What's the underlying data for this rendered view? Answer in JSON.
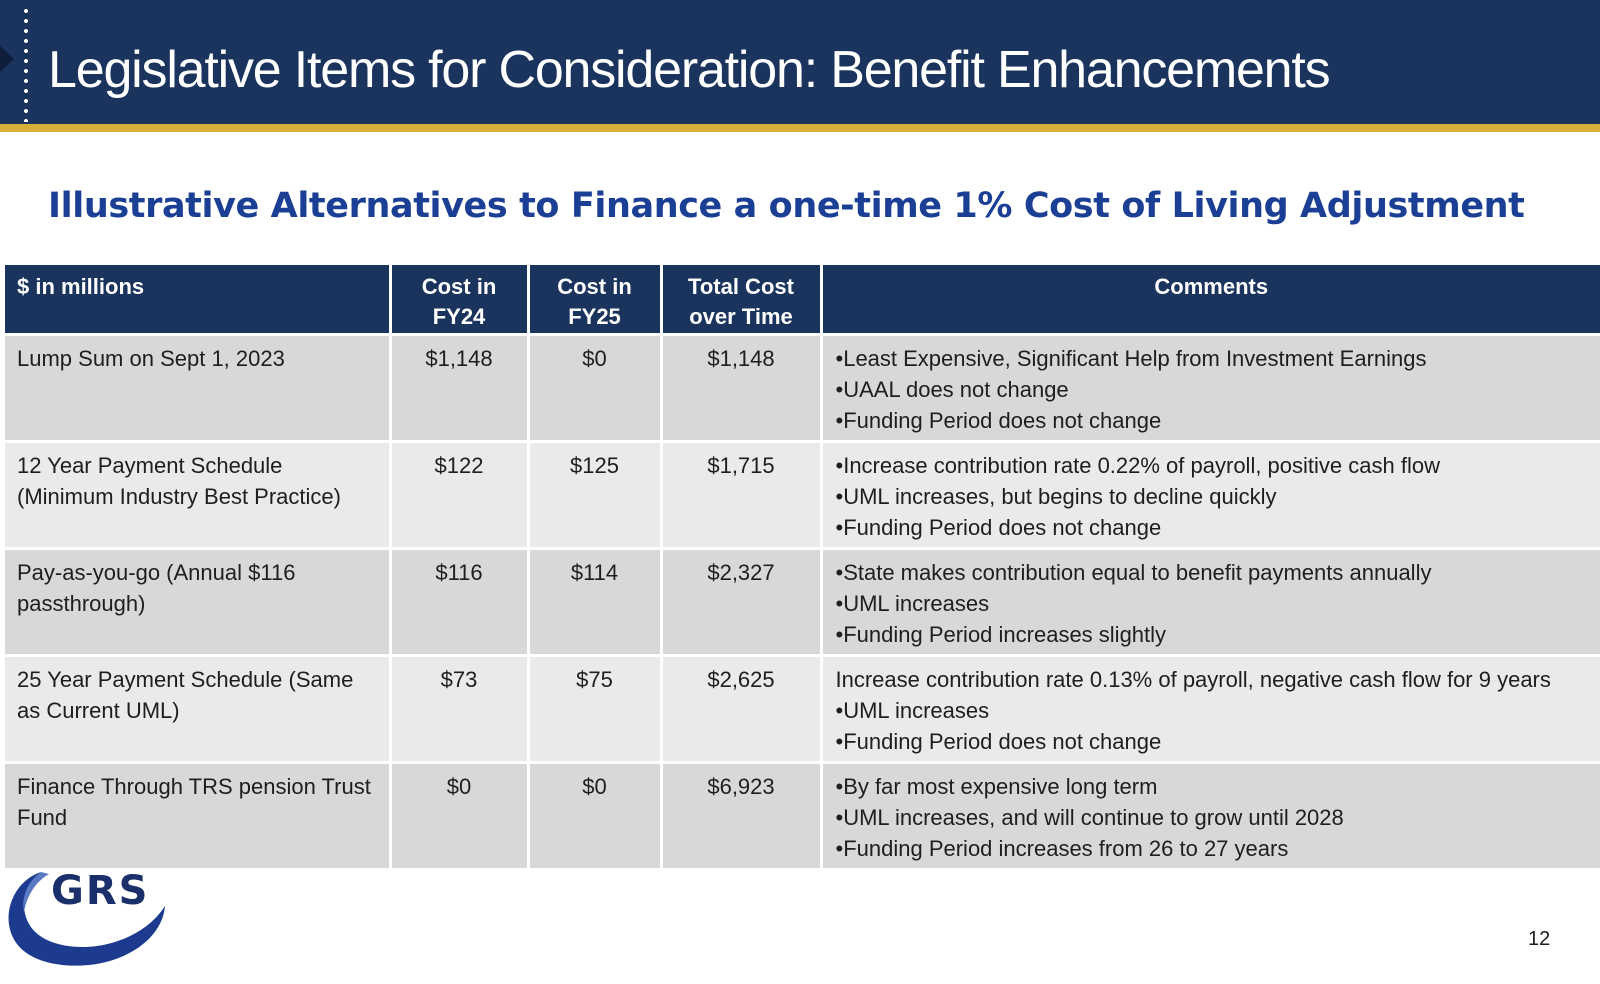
{
  "header": {
    "title": "Legislative Items for Consideration: Benefit Enhancements"
  },
  "subtitle": "Illustrative Alternatives to Finance a one-time 1% Cost of Living Adjustment",
  "table": {
    "columns": [
      {
        "line1": "$ in millions",
        "line2": ""
      },
      {
        "line1": "Cost in",
        "line2": "FY24"
      },
      {
        "line1": "Cost in",
        "line2": "FY25"
      },
      {
        "line1": "Total Cost",
        "line2": "over Time"
      },
      {
        "line1": "Comments",
        "line2": ""
      }
    ],
    "rows": [
      {
        "alternative": "Lump Sum on Sept 1, 2023",
        "fy24": "$1,148",
        "fy25": "$0",
        "total": "$1,148",
        "comments": [
          "•Least Expensive, Significant Help from Investment Earnings",
          "•UAAL does not change",
          "•Funding Period does not change"
        ]
      },
      {
        "alternative": "12 Year Payment Schedule (Minimum Industry Best Practice)",
        "fy24": "$122",
        "fy25": "$125",
        "total": "$1,715",
        "comments": [
          "•Increase contribution rate 0.22% of payroll, positive cash flow",
          "•UML increases, but begins to decline quickly",
          "•Funding Period does not change"
        ]
      },
      {
        "alternative": "Pay-as-you-go (Annual $116 passthrough)",
        "fy24": "$116",
        "fy25": "$114",
        "total": "$2,327",
        "comments": [
          "•State makes contribution equal to benefit payments annually",
          "•UML increases",
          "•Funding Period increases slightly"
        ]
      },
      {
        "alternative": "25 Year Payment Schedule (Same as Current UML)",
        "fy24": "$73",
        "fy25": "$75",
        "total": "$2,625",
        "comments": [
          "Increase contribution rate 0.13% of payroll, negative cash flow for 9 years",
          "•UML increases",
          "•Funding Period does not change"
        ]
      },
      {
        "alternative": "Finance Through TRS pension Trust Fund",
        "fy24": "$0",
        "fy25": "$0",
        "total": "$6,923",
        "comments": [
          "•By far most expensive long term",
          "•UML increases, and will continue to grow until 2028",
          "•Funding Period increases from 26 to 27 years"
        ]
      }
    ]
  },
  "logo": {
    "text": "GRS",
    "text_color": "#1b2f6b",
    "swoosh_color": "#1c3b8f"
  },
  "page_number": "12",
  "colors": {
    "header_bg": "#1b345e",
    "header_rule": "#d6b13a",
    "subtitle": "#1a3f94",
    "row_dark": "#d8d8d8",
    "row_light": "#eaeaea"
  }
}
